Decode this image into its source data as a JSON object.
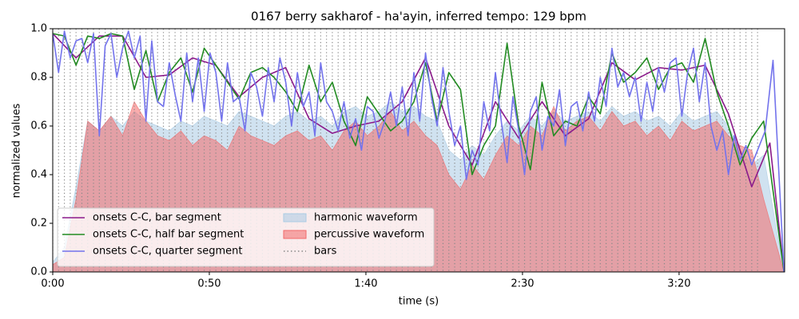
{
  "chart_data": {
    "type": "line",
    "title": "0167 berry sakharof - ha'ayin, inferred tempo: 129 bpm",
    "x_label": "time (s)",
    "y_label": "normalized values",
    "xlim": [
      0,
      233.7
    ],
    "xticks": [
      {
        "value": 0,
        "label": "0:00"
      },
      {
        "value": 50,
        "label": "0:50"
      },
      {
        "value": 100,
        "label": "1:40"
      },
      {
        "value": 150,
        "label": "2:30"
      },
      {
        "value": 200,
        "label": "3:20"
      }
    ],
    "ylim": [
      0,
      1
    ],
    "yticks": [
      {
        "value": 0,
        "label": "0.0"
      },
      0.2,
      0.4,
      0.6,
      0.8,
      {
        "value": 1,
        "label": "1.0"
      }
    ],
    "legend_loc": "lower left",
    "legend_columns": 2,
    "series": [
      {
        "name": "onsets C-C, bar segment",
        "style": "line",
        "color": "#8b1a8b",
        "x": [
          0,
          7.44,
          14.88,
          22.32,
          29.76,
          37.2,
          44.64,
          52.08,
          59.52,
          66.96,
          74.4,
          81.84,
          89.28,
          96.72,
          104.16,
          111.6,
          119.04,
          126.48,
          133.92,
          141.36,
          148.8,
          156.24,
          163.68,
          171.12,
          178.56,
          186,
          193.44,
          200.88,
          208.32,
          215.76,
          223.2,
          229,
          233.5
        ],
        "values": [
          0.98,
          0.88,
          0.97,
          0.97,
          0.8,
          0.81,
          0.88,
          0.85,
          0.72,
          0.8,
          0.84,
          0.63,
          0.57,
          0.6,
          0.62,
          0.7,
          0.88,
          0.6,
          0.44,
          0.7,
          0.55,
          0.7,
          0.56,
          0.63,
          0.86,
          0.79,
          0.84,
          0.83,
          0.85,
          0.65,
          0.35,
          0.53,
          0.0
        ]
      },
      {
        "name": "onsets C-C, half bar segment",
        "style": "line",
        "color": "#228b22",
        "x": [
          0,
          3.72,
          7.44,
          11.16,
          14.88,
          18.6,
          22.32,
          26.04,
          29.76,
          33.48,
          37.2,
          40.92,
          44.64,
          48.36,
          52.08,
          55.8,
          59.52,
          63.24,
          66.96,
          70.68,
          74.4,
          78.12,
          81.84,
          85.56,
          89.28,
          93,
          96.72,
          100.44,
          104.16,
          107.88,
          111.6,
          115.32,
          119.04,
          122.76,
          126.48,
          130.2,
          133.92,
          137.64,
          141.36,
          145.08,
          148.8,
          152.52,
          156.24,
          159.96,
          163.68,
          167.4,
          171.12,
          174.84,
          178.56,
          182.28,
          186,
          189.72,
          193.44,
          197.16,
          200.88,
          204.6,
          208.32,
          212.04,
          215.76,
          219.48,
          223.2,
          227,
          233.5
        ],
        "values": [
          0.98,
          0.97,
          0.85,
          0.97,
          0.96,
          0.98,
          0.97,
          0.75,
          0.91,
          0.7,
          0.82,
          0.88,
          0.74,
          0.92,
          0.85,
          0.78,
          0.71,
          0.82,
          0.84,
          0.8,
          0.74,
          0.66,
          0.85,
          0.7,
          0.78,
          0.62,
          0.52,
          0.72,
          0.65,
          0.58,
          0.62,
          0.7,
          0.86,
          0.62,
          0.82,
          0.75,
          0.4,
          0.52,
          0.6,
          0.94,
          0.6,
          0.42,
          0.78,
          0.56,
          0.62,
          0.6,
          0.72,
          0.65,
          0.9,
          0.78,
          0.82,
          0.88,
          0.75,
          0.84,
          0.86,
          0.78,
          0.96,
          0.74,
          0.6,
          0.44,
          0.55,
          0.62,
          0.0
        ]
      },
      {
        "name": "onsets C-C, quarter segment",
        "style": "line",
        "color": "#7373ec",
        "x": [
          0,
          1.86,
          3.72,
          5.58,
          7.44,
          9.3,
          11.16,
          13.02,
          14.88,
          16.74,
          18.6,
          20.46,
          22.32,
          24.18,
          26.04,
          27.9,
          29.76,
          31.62,
          33.48,
          35.34,
          37.2,
          39.06,
          40.92,
          42.78,
          44.64,
          46.5,
          48.36,
          50.22,
          52.08,
          53.94,
          55.8,
          57.66,
          59.52,
          61.38,
          63.24,
          65.1,
          66.96,
          68.82,
          70.68,
          72.54,
          74.4,
          76.26,
          78.12,
          79.98,
          81.84,
          83.7,
          85.56,
          87.42,
          89.28,
          91.14,
          93,
          94.86,
          96.72,
          98.58,
          100.44,
          102.3,
          104.16,
          106.02,
          107.88,
          109.74,
          111.6,
          113.46,
          115.32,
          117.18,
          119.04,
          120.9,
          122.76,
          124.62,
          126.48,
          128.34,
          130.2,
          132.06,
          133.92,
          135.78,
          137.64,
          139.5,
          141.36,
          143.22,
          145.08,
          146.94,
          148.8,
          150.66,
          152.52,
          154.38,
          156.24,
          158.1,
          159.96,
          161.82,
          163.68,
          165.54,
          167.4,
          169.26,
          171.12,
          172.98,
          174.84,
          176.7,
          178.56,
          180.42,
          182.28,
          184.14,
          186,
          187.86,
          189.72,
          191.58,
          193.44,
          195.3,
          197.16,
          199.02,
          200.88,
          202.74,
          204.6,
          206.46,
          208.32,
          210.18,
          212.04,
          213.9,
          215.76,
          217.62,
          219.48,
          221.34,
          223.2,
          227.5,
          230,
          233.5
        ],
        "values": [
          0.98,
          0.82,
          0.99,
          0.88,
          0.95,
          0.96,
          0.86,
          0.98,
          0.56,
          0.93,
          0.98,
          0.8,
          0.92,
          0.99,
          0.88,
          0.97,
          0.62,
          0.95,
          0.7,
          0.68,
          0.86,
          0.73,
          0.62,
          0.9,
          0.7,
          0.88,
          0.66,
          0.9,
          0.82,
          0.62,
          0.86,
          0.7,
          0.72,
          0.58,
          0.82,
          0.76,
          0.64,
          0.84,
          0.7,
          0.88,
          0.78,
          0.6,
          0.82,
          0.68,
          0.74,
          0.56,
          0.86,
          0.7,
          0.66,
          0.58,
          0.7,
          0.55,
          0.63,
          0.5,
          0.68,
          0.66,
          0.55,
          0.62,
          0.74,
          0.6,
          0.76,
          0.56,
          0.82,
          0.62,
          0.9,
          0.72,
          0.6,
          0.84,
          0.66,
          0.52,
          0.6,
          0.38,
          0.5,
          0.44,
          0.7,
          0.58,
          0.82,
          0.62,
          0.45,
          0.72,
          0.58,
          0.4,
          0.66,
          0.72,
          0.5,
          0.64,
          0.6,
          0.75,
          0.52,
          0.68,
          0.7,
          0.58,
          0.74,
          0.62,
          0.8,
          0.68,
          0.92,
          0.76,
          0.82,
          0.72,
          0.8,
          0.62,
          0.78,
          0.66,
          0.84,
          0.74,
          0.86,
          0.88,
          0.64,
          0.82,
          0.92,
          0.7,
          0.86,
          0.6,
          0.5,
          0.58,
          0.4,
          0.56,
          0.46,
          0.52,
          0.44,
          0.58,
          0.87,
          0.0
        ]
      },
      {
        "name": "harmonic waveform",
        "style": "area",
        "color": "#a9cbe3",
        "x": [
          0,
          3.72,
          7.44,
          11.16,
          14.88,
          18.6,
          22.32,
          26.04,
          29.76,
          33.48,
          37.2,
          40.92,
          44.64,
          48.36,
          52.08,
          55.8,
          59.52,
          63.24,
          66.96,
          70.68,
          74.4,
          78.12,
          81.84,
          85.56,
          89.28,
          93,
          96.72,
          100.44,
          104.16,
          107.88,
          111.6,
          115.32,
          119.04,
          122.76,
          126.48,
          130.2,
          133.92,
          137.64,
          141.36,
          145.08,
          148.8,
          152.52,
          156.24,
          159.96,
          163.68,
          167.4,
          171.12,
          174.84,
          178.56,
          182.28,
          186,
          189.72,
          193.44,
          197.16,
          200.88,
          204.6,
          208.32,
          212.04,
          215.76,
          219.48,
          223.2,
          227,
          233.5
        ],
        "values": [
          0.04,
          0.1,
          0.35,
          0.62,
          0.58,
          0.64,
          0.6,
          0.66,
          0.62,
          0.6,
          0.58,
          0.62,
          0.6,
          0.64,
          0.62,
          0.6,
          0.66,
          0.64,
          0.62,
          0.6,
          0.64,
          0.66,
          0.62,
          0.64,
          0.6,
          0.66,
          0.68,
          0.64,
          0.66,
          0.7,
          0.66,
          0.68,
          0.64,
          0.62,
          0.5,
          0.46,
          0.52,
          0.48,
          0.56,
          0.62,
          0.58,
          0.64,
          0.6,
          0.66,
          0.62,
          0.64,
          0.66,
          0.62,
          0.68,
          0.64,
          0.66,
          0.62,
          0.64,
          0.6,
          0.66,
          0.62,
          0.64,
          0.66,
          0.6,
          0.5,
          0.44,
          0.48,
          0.0
        ]
      },
      {
        "name": "percussive waveform",
        "style": "area",
        "color": "#f26a6a",
        "x": [
          0,
          3.72,
          7.44,
          11.16,
          14.88,
          18.6,
          22.32,
          26.04,
          29.76,
          33.48,
          37.2,
          40.92,
          44.64,
          48.36,
          52.08,
          55.8,
          59.52,
          63.24,
          66.96,
          70.68,
          74.4,
          78.12,
          81.84,
          85.56,
          89.28,
          93,
          96.72,
          100.44,
          104.16,
          107.88,
          111.6,
          115.32,
          119.04,
          122.76,
          126.48,
          130.2,
          133.92,
          137.64,
          141.36,
          145.08,
          148.8,
          152.52,
          156.24,
          159.96,
          163.68,
          167.4,
          171.12,
          174.84,
          178.56,
          182.28,
          186,
          189.72,
          193.44,
          197.16,
          200.88,
          204.6,
          208.32,
          212.04,
          215.76,
          219.48,
          223.2,
          227,
          233.5
        ],
        "values": [
          0.03,
          0.06,
          0.3,
          0.62,
          0.58,
          0.64,
          0.56,
          0.7,
          0.62,
          0.56,
          0.54,
          0.58,
          0.52,
          0.56,
          0.54,
          0.5,
          0.6,
          0.56,
          0.54,
          0.52,
          0.56,
          0.58,
          0.54,
          0.56,
          0.5,
          0.58,
          0.62,
          0.56,
          0.6,
          0.66,
          0.58,
          0.62,
          0.56,
          0.52,
          0.4,
          0.34,
          0.44,
          0.38,
          0.48,
          0.56,
          0.52,
          0.6,
          0.56,
          0.68,
          0.58,
          0.62,
          0.64,
          0.58,
          0.66,
          0.6,
          0.62,
          0.56,
          0.6,
          0.54,
          0.62,
          0.58,
          0.6,
          0.62,
          0.56,
          0.52,
          0.5,
          0.3,
          0.0
        ]
      },
      {
        "name": "bars",
        "style": "vlines",
        "color": "#888888",
        "x": [
          0,
          1.86,
          3.72,
          5.58,
          7.44,
          9.3,
          11.16,
          13.02,
          14.88,
          16.74,
          18.6,
          20.46,
          22.32,
          24.18,
          26.04,
          27.9,
          29.76,
          31.62,
          33.48,
          35.34,
          37.2,
          39.06,
          40.92,
          42.78,
          44.64,
          46.5,
          48.36,
          50.22,
          52.08,
          53.94,
          55.8,
          57.66,
          59.52,
          61.38,
          63.24,
          65.1,
          66.96,
          68.82,
          70.68,
          72.54,
          74.4,
          76.26,
          78.12,
          79.98,
          81.84,
          83.7,
          85.56,
          87.42,
          89.28,
          91.14,
          93,
          94.86,
          96.72,
          98.58,
          100.44,
          102.3,
          104.16,
          106.02,
          107.88,
          109.74,
          111.6,
          113.46,
          115.32,
          117.18,
          119.04,
          120.9,
          122.76,
          124.62,
          126.48,
          128.34,
          130.2,
          132.06,
          133.92,
          135.78,
          137.64,
          139.5,
          141.36,
          143.22,
          145.08,
          146.94,
          148.8,
          150.66,
          152.52,
          154.38,
          156.24,
          158.1,
          159.96,
          161.82,
          163.68,
          165.54,
          167.4,
          169.26,
          171.12,
          172.98,
          174.84,
          176.7,
          178.56,
          180.42,
          182.28,
          184.14,
          186,
          187.86,
          189.72,
          191.58,
          193.44,
          195.3,
          197.16,
          199.02,
          200.88,
          202.74,
          204.6,
          206.46,
          208.32,
          210.18,
          212.04,
          213.9,
          215.76,
          217.62,
          219.48,
          221.34,
          223.2,
          225.06
        ]
      }
    ]
  }
}
